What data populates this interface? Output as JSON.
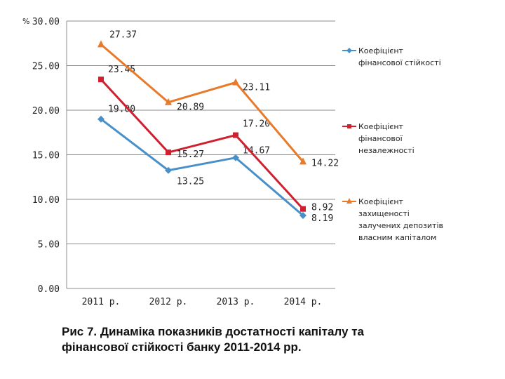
{
  "caption": "Рис 7. Динаміка показників достатності капіталу та фінансової стійкості банку 2011-2014 рр.",
  "chart_data": {
    "type": "line",
    "ylabel": "%",
    "ylim": [
      0,
      30
    ],
    "yticks": [
      "0.00",
      "5.00",
      "10.00",
      "15.00",
      "20.00",
      "25.00",
      "30.00"
    ],
    "categories": [
      "2011 р.",
      "2012 р.",
      "2013 р.",
      "2014 р."
    ],
    "grid": true,
    "legend_position": "right",
    "series": [
      {
        "name": "Коефіцієнт фінансової стійкості",
        "legend_lines": [
          "Коефіцієнт",
          "фінансової стійкості"
        ],
        "color": "#4a90c8",
        "marker": "diamond",
        "values": [
          19.0,
          13.25,
          14.67,
          8.19
        ],
        "labels": [
          "19.00",
          "13.25",
          "14.67",
          "8.19"
        ]
      },
      {
        "name": "Коефіцієнт фінансової незалежності",
        "legend_lines": [
          "Коефіцієнт",
          "фінансової",
          "незалежності"
        ],
        "color": "#d0202f",
        "marker": "square",
        "values": [
          23.45,
          15.27,
          17.2,
          8.92
        ],
        "labels": [
          "23.45",
          "15.27",
          "17.20",
          "8.92"
        ]
      },
      {
        "name": "Коефіцієнт захищеності залучених депозитів власним капіталом",
        "legend_lines": [
          "Коефіцієнт",
          "захищеності",
          "залучених депозитів",
          "власним капіталом"
        ],
        "color": "#e87a2a",
        "marker": "triangle",
        "values": [
          27.37,
          20.89,
          23.11,
          14.22
        ],
        "labels": [
          "27.37",
          "20.89",
          "23.11",
          "14.22"
        ]
      }
    ]
  }
}
